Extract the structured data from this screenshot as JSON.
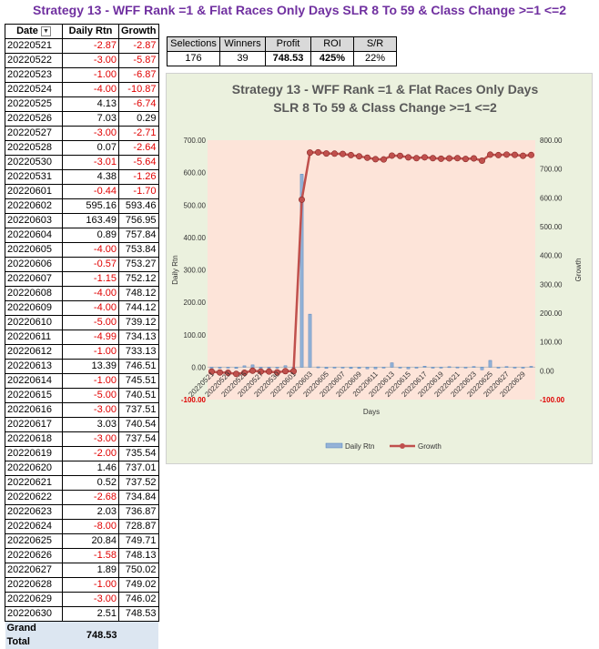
{
  "title": "Strategy 13 - WFF Rank =1 & Flat Races Only Days SLR 8 To 59 & Class Change >=1 <=2",
  "table": {
    "headers": [
      "Date",
      "Daily Rtn",
      "Growth"
    ],
    "rows": [
      [
        "20220521",
        "-2.87",
        "-2.87"
      ],
      [
        "20220522",
        "-3.00",
        "-5.87"
      ],
      [
        "20220523",
        "-1.00",
        "-6.87"
      ],
      [
        "20220524",
        "-4.00",
        "-10.87"
      ],
      [
        "20220525",
        "4.13",
        "-6.74"
      ],
      [
        "20220526",
        "7.03",
        "0.29"
      ],
      [
        "20220527",
        "-3.00",
        "-2.71"
      ],
      [
        "20220528",
        "0.07",
        "-2.64"
      ],
      [
        "20220530",
        "-3.01",
        "-5.64"
      ],
      [
        "20220531",
        "4.38",
        "-1.26"
      ],
      [
        "20220601",
        "-0.44",
        "-1.70"
      ],
      [
        "20220602",
        "595.16",
        "593.46"
      ],
      [
        "20220603",
        "163.49",
        "756.95"
      ],
      [
        "20220604",
        "0.89",
        "757.84"
      ],
      [
        "20220605",
        "-4.00",
        "753.84"
      ],
      [
        "20220606",
        "-0.57",
        "753.27"
      ],
      [
        "20220607",
        "-1.15",
        "752.12"
      ],
      [
        "20220608",
        "-4.00",
        "748.12"
      ],
      [
        "20220609",
        "-4.00",
        "744.12"
      ],
      [
        "20220610",
        "-5.00",
        "739.12"
      ],
      [
        "20220611",
        "-4.99",
        "734.13"
      ],
      [
        "20220612",
        "-1.00",
        "733.13"
      ],
      [
        "20220613",
        "13.39",
        "746.51"
      ],
      [
        "20220614",
        "-1.00",
        "745.51"
      ],
      [
        "20220615",
        "-5.00",
        "740.51"
      ],
      [
        "20220616",
        "-3.00",
        "737.51"
      ],
      [
        "20220617",
        "3.03",
        "740.54"
      ],
      [
        "20220618",
        "-3.00",
        "737.54"
      ],
      [
        "20220619",
        "-2.00",
        "735.54"
      ],
      [
        "20220620",
        "1.46",
        "737.01"
      ],
      [
        "20220621",
        "0.52",
        "737.52"
      ],
      [
        "20220622",
        "-2.68",
        "734.84"
      ],
      [
        "20220623",
        "2.03",
        "736.87"
      ],
      [
        "20220624",
        "-8.00",
        "728.87"
      ],
      [
        "20220625",
        "20.84",
        "749.71"
      ],
      [
        "20220626",
        "-1.58",
        "748.13"
      ],
      [
        "20220627",
        "1.89",
        "750.02"
      ],
      [
        "20220628",
        "-1.00",
        "749.02"
      ],
      [
        "20220629",
        "-3.00",
        "746.02"
      ],
      [
        "20220630",
        "2.51",
        "748.53"
      ]
    ],
    "grand_total_label": "Grand Total",
    "grand_total_value": "748.53"
  },
  "stats": {
    "headers": [
      "Selections",
      "Winners",
      "Profit",
      "ROI",
      "S/R"
    ],
    "values": [
      "176",
      "39",
      "748.53",
      "425%",
      "22%"
    ]
  },
  "chart_data": {
    "type": "bar",
    "title_line1": "Strategy 13 - WFF Rank =1 & Flat Races Only Days",
    "title_line2": "SLR 8 To 59 & Class Change >=1 <=2",
    "xlabel": "Days",
    "ylabel_left": "Daily Rtn",
    "ylabel_right": "Growth",
    "ylim_left": [
      -100,
      700
    ],
    "ylim_right": [
      -100,
      800
    ],
    "yticks_left": [
      "700.00",
      "600.00",
      "500.00",
      "400.00",
      "300.00",
      "200.00",
      "100.00",
      "0.00",
      "-100.00"
    ],
    "yticks_right": [
      "800.00",
      "700.00",
      "600.00",
      "500.00",
      "400.00",
      "300.00",
      "200.00",
      "100.00",
      "0.00",
      "-100.00"
    ],
    "xtick_labels": [
      "20220521",
      "20220523",
      "20220525",
      "20220527",
      "20220530",
      "20220601",
      "20220603",
      "20220605",
      "20220607",
      "20220609",
      "20220611",
      "20220613",
      "20220615",
      "20220617",
      "20220619",
      "20220621",
      "20220623",
      "20220625",
      "20220627",
      "20220629"
    ],
    "series": [
      {
        "name": "Daily Rtn",
        "kind": "bar",
        "color": "#4f81bd",
        "values": [
          -2.87,
          -3.0,
          -1.0,
          -4.0,
          4.13,
          7.03,
          -3.0,
          0.07,
          -3.01,
          4.38,
          -0.44,
          595.16,
          163.49,
          0.89,
          -4.0,
          -0.57,
          -1.15,
          -4.0,
          -4.0,
          -5.0,
          -4.99,
          -1.0,
          13.39,
          -1.0,
          -5.0,
          -3.0,
          3.03,
          -3.0,
          -2.0,
          1.46,
          0.52,
          -2.68,
          2.03,
          -8.0,
          20.84,
          -1.58,
          1.89,
          -1.0,
          -3.0,
          2.51
        ]
      },
      {
        "name": "Growth",
        "kind": "line",
        "color": "#c0504d",
        "values": [
          -2.87,
          -5.87,
          -6.87,
          -10.87,
          -6.74,
          0.29,
          -2.71,
          -2.64,
          -5.64,
          -1.26,
          -1.7,
          593.46,
          756.95,
          757.84,
          753.84,
          753.27,
          752.12,
          748.12,
          744.12,
          739.12,
          734.13,
          733.13,
          746.51,
          745.51,
          740.51,
          737.51,
          740.54,
          737.54,
          735.54,
          737.01,
          737.52,
          734.84,
          736.87,
          728.87,
          749.71,
          748.13,
          750.02,
          749.02,
          746.02,
          748.53
        ]
      }
    ],
    "legend_position": "bottom",
    "grid": false
  }
}
